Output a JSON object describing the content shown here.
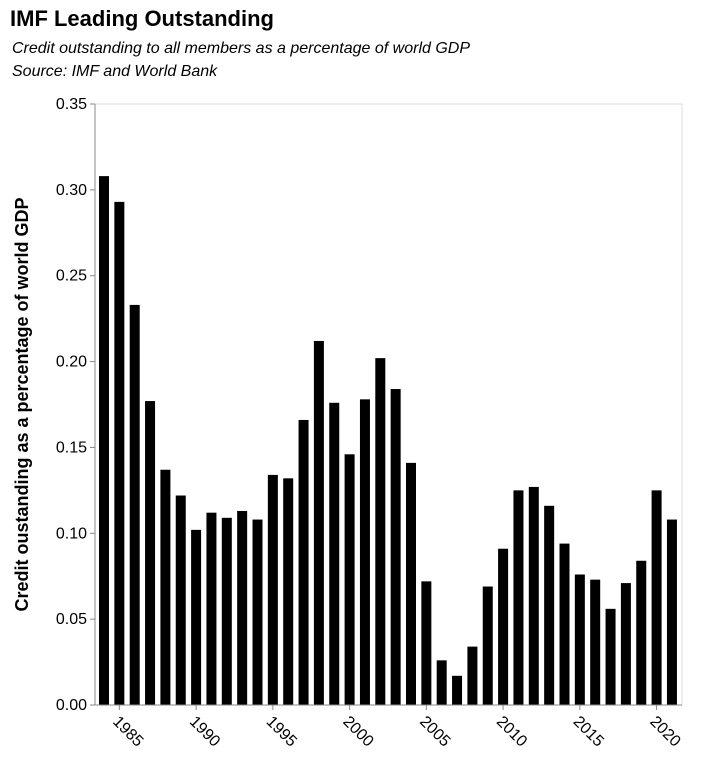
{
  "chart_data": {
    "type": "bar",
    "title": "IMF Leading Outstanding",
    "subtitle": [
      "Credit outstanding to all members as a percentage of world GDP",
      "Source: IMF and World Bank"
    ],
    "xlabel": "",
    "ylabel": "Credit oustanding as a percentage of world GDP",
    "ylim": [
      0,
      0.35
    ],
    "yticks": [
      "0.00",
      "0.05",
      "0.10",
      "0.15",
      "0.20",
      "0.25",
      "0.30",
      "0.35"
    ],
    "xticks": [
      "1985",
      "1990",
      "1995",
      "2000",
      "2005",
      "2010",
      "2015",
      "2020"
    ],
    "grid": false,
    "categories": [
      1984,
      1985,
      1986,
      1987,
      1988,
      1989,
      1990,
      1991,
      1992,
      1993,
      1994,
      1995,
      1996,
      1997,
      1998,
      1999,
      2000,
      2001,
      2002,
      2003,
      2004,
      2005,
      2006,
      2007,
      2008,
      2009,
      2010,
      2011,
      2012,
      2013,
      2014,
      2015,
      2016,
      2017,
      2018,
      2019,
      2020,
      2021
    ],
    "values": [
      0.308,
      0.293,
      0.233,
      0.177,
      0.137,
      0.122,
      0.102,
      0.112,
      0.109,
      0.113,
      0.108,
      0.134,
      0.132,
      0.166,
      0.212,
      0.176,
      0.146,
      0.178,
      0.202,
      0.184,
      0.141,
      0.072,
      0.026,
      0.017,
      0.034,
      0.069,
      0.091,
      0.125,
      0.127,
      0.116,
      0.094,
      0.076,
      0.073,
      0.056,
      0.071,
      0.084,
      0.125,
      0.108
    ],
    "colors": {
      "bar": "#000000",
      "axis": "#888888",
      "frame": "#dddddd"
    }
  }
}
